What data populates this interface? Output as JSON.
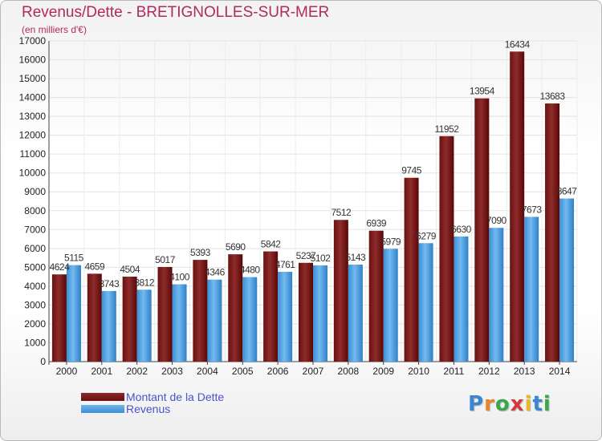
{
  "header": {
    "title": "Revenus/Dette - BRETIGNOLLES-SUR-MER",
    "subtitle": "(en milliers d'€)"
  },
  "legend": {
    "debt_label": "Montant de la Dette",
    "revenue_label": "Revenus"
  },
  "logo": {
    "text": "Proxiti",
    "letter_colors": [
      "#3a86d0",
      "#e8852a",
      "#3aa84a",
      "#d23a3a",
      "#e8b82a",
      "#3a86d0",
      "#3aa84a"
    ]
  },
  "colors": {
    "debt_top": "#8a2a2a",
    "debt_bottom": "#5a0505",
    "revenue_top": "#6fb6ee",
    "revenue_bottom": "#2f83cd",
    "title": "#b02a5f",
    "legend_text": "#4a54c8"
  },
  "chart_data": {
    "type": "bar",
    "title": "Revenus/Dette - BRETIGNOLLES-SUR-MER",
    "subtitle": "(en milliers d'€)",
    "xlabel": "",
    "ylabel": "",
    "ylim": [
      0,
      17000
    ],
    "ytick_step": 1000,
    "grid": true,
    "legend_position": "bottom-left",
    "categories": [
      "2000",
      "2001",
      "2002",
      "2003",
      "2004",
      "2005",
      "2006",
      "2007",
      "2008",
      "2009",
      "2010",
      "2011",
      "2012",
      "2013",
      "2014"
    ],
    "series": [
      {
        "name": "Montant de la Dette",
        "values": [
          4624,
          4659,
          4504,
          5017,
          5393,
          5690,
          5842,
          5237,
          7512,
          6939,
          9745,
          11952,
          13954,
          16434,
          13683
        ],
        "labels": [
          "4624",
          "4659",
          "4504",
          "5017",
          "5393",
          "5690",
          "5842",
          "5237",
          "7512",
          "6939",
          "9745",
          "11952",
          "13954",
          "16434",
          "13683"
        ]
      },
      {
        "name": "Revenus",
        "values": [
          5115,
          3743,
          3812,
          4100,
          4346,
          4480,
          4761,
          5102,
          5143,
          5979,
          6279,
          6630,
          7090,
          7673,
          8647
        ],
        "labels": [
          "5115",
          "3743",
          "3812",
          "4100",
          "4346",
          "4480",
          "4761",
          "5102",
          "5143",
          "5979",
          "6279",
          "6630",
          "7090",
          "7673",
          "8647"
        ]
      }
    ]
  }
}
